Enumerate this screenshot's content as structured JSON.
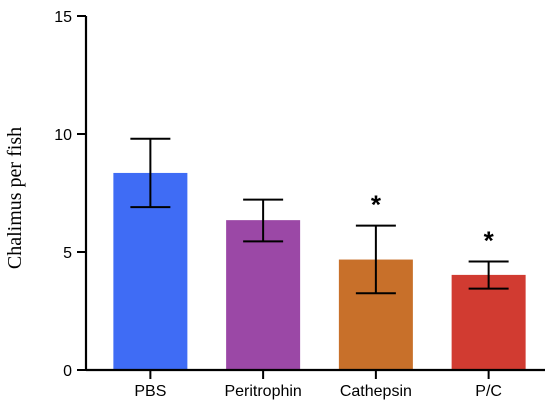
{
  "chart_data": {
    "type": "bar",
    "title": "",
    "xlabel": "",
    "ylabel": "Chalimus per fish",
    "ylim": [
      0,
      15
    ],
    "yticks": [
      0,
      5,
      10,
      15
    ],
    "categories": [
      "PBS",
      "Peritrophin",
      "Cathepsin",
      "P/C"
    ],
    "values": [
      8.35,
      6.35,
      4.68,
      4.03
    ],
    "error_low": [
      6.9,
      5.45,
      3.25,
      3.45
    ],
    "error_high": [
      9.8,
      7.22,
      6.12,
      4.6
    ],
    "significance": [
      "",
      "",
      "*",
      "*"
    ],
    "colors": [
      "#3f6cf5",
      "#9b48a6",
      "#c8702a",
      "#d13b31"
    ],
    "grid": false,
    "legend": "none"
  }
}
